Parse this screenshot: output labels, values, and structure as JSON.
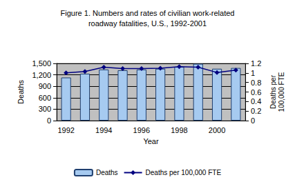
{
  "chart_data": {
    "type": "bar",
    "title": "Figure 1. Numbers and rates of civilian work-related\nroadway fatalities, U.S., 1992-2001",
    "x_label": "Year",
    "y_label": "Deaths",
    "y2_label": "Deaths per\n100,000 FTE",
    "categories": [
      "1992",
      null,
      "1994",
      null,
      "1996",
      null,
      "1998",
      null,
      "2000",
      null
    ],
    "series": [
      {
        "name": "Deaths",
        "type": "bar",
        "color": "#a6caf0",
        "values": [
          1130,
          1230,
          1340,
          1320,
          1340,
          1360,
          1410,
          1490,
          1360,
          1380
        ]
      },
      {
        "name": "Deaths per 100,000 FTE",
        "type": "line",
        "axis": "y2",
        "color": "#000080",
        "marker": "diamond",
        "values": [
          1.0,
          1.03,
          1.12,
          1.09,
          1.09,
          1.1,
          1.13,
          1.12,
          1.01,
          1.06
        ]
      }
    ],
    "ylim": [
      0,
      1500
    ],
    "yticks": [
      0,
      300,
      600,
      900,
      1200,
      1500
    ],
    "y2lim": [
      0,
      1.2
    ],
    "y2ticks": [
      0,
      0.2,
      0.4,
      0.6,
      0.8,
      1,
      1.2
    ],
    "grid": true,
    "legend": "bottom"
  }
}
